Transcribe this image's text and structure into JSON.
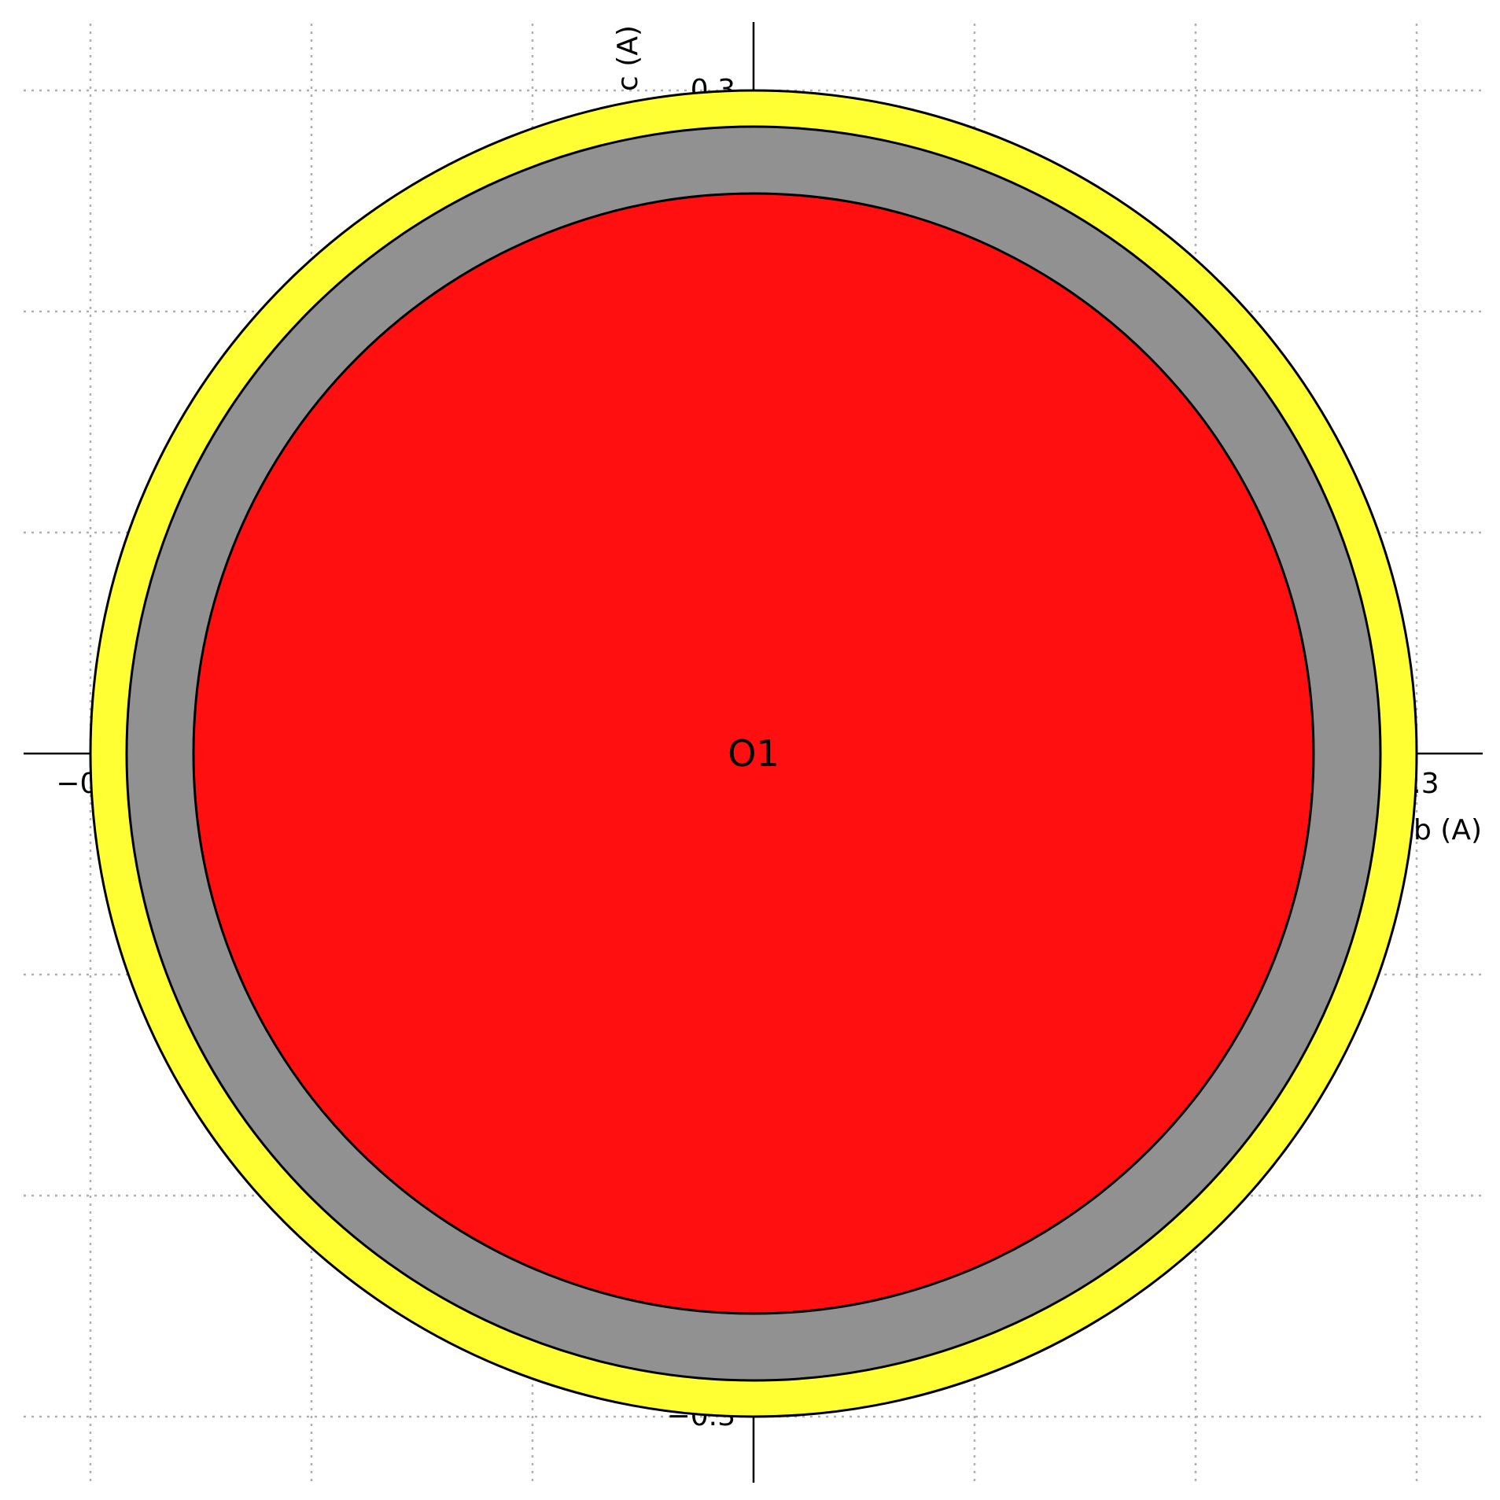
{
  "axes": {
    "x_title": "b (A)",
    "y_title": "c (A)",
    "x_left_tick": "−0.3",
    "x_right_tick": "0.3",
    "y_top_tick": "0.3",
    "y_bottom_tick": "−0.3",
    "grid": true
  },
  "atom": {
    "label": "O1",
    "rings": [
      {
        "name": "outer",
        "color": "#ffff33",
        "radius_fraction": 1.0
      },
      {
        "name": "middle",
        "color": "#919191",
        "radius_fraction": 0.945
      },
      {
        "name": "inner",
        "color": "#ff0f0f",
        "radius_fraction": 0.845
      }
    ]
  }
}
